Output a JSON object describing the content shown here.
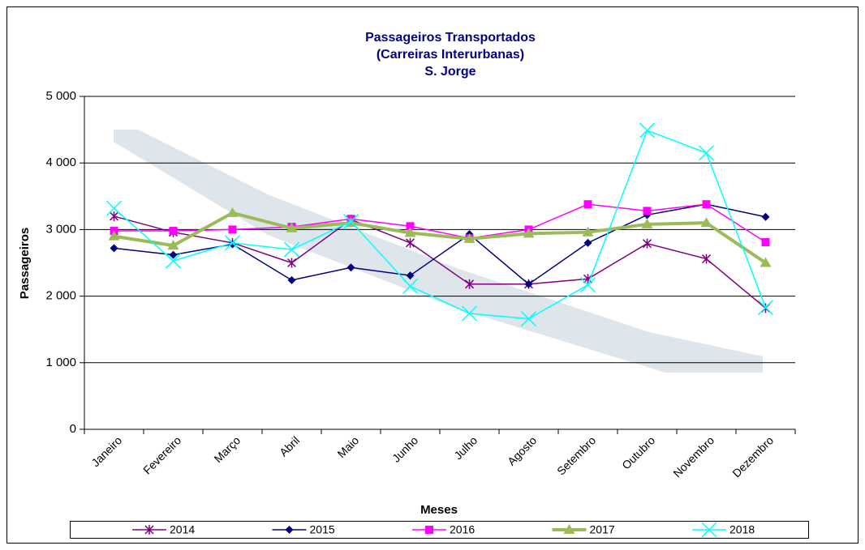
{
  "chart_data": {
    "type": "line",
    "title_lines": [
      "Passageiros Transportados",
      "(Carreiras Interurbanas)",
      "S. Jorge"
    ],
    "x_label": "Meses",
    "y_label": "Passageiros",
    "categories": [
      "Janeiro",
      "Fevereiro",
      "Março",
      "Abril",
      "Maio",
      "Junho",
      "Julho",
      "Agosto",
      "Setembro",
      "Outubro",
      "Novembro",
      "Dezembro"
    ],
    "series": [
      {
        "name": "2014",
        "color": "#800080",
        "marker": "star",
        "width": 1.5,
        "values": [
          3200,
          2960,
          2800,
          2500,
          3150,
          2800,
          2180,
          2180,
          2260,
          2790,
          2560,
          1820
        ]
      },
      {
        "name": "2015",
        "color": "#000080",
        "marker": "diamond",
        "width": 1.5,
        "values": [
          2720,
          2620,
          2780,
          2240,
          2430,
          2310,
          2930,
          2180,
          2800,
          3220,
          3380,
          3190
        ]
      },
      {
        "name": "2016",
        "color": "#ff00ff",
        "marker": "square",
        "width": 1.5,
        "values": [
          2980,
          2980,
          3000,
          3040,
          3160,
          3050,
          2870,
          3000,
          3380,
          3280,
          3380,
          2810
        ]
      },
      {
        "name": "2017",
        "color": "#9bbb59",
        "marker": "triangle",
        "width": 4,
        "values": [
          2900,
          2760,
          3250,
          3020,
          3100,
          2950,
          2860,
          2940,
          2960,
          3080,
          3100,
          2500
        ]
      },
      {
        "name": "2018",
        "color": "#00ffff",
        "marker": "x",
        "width": 1.5,
        "values": [
          3320,
          2530,
          2800,
          2700,
          3120,
          2150,
          1740,
          1660,
          2170,
          4490,
          4150,
          1830
        ]
      }
    ],
    "ylim": [
      0,
      5000
    ],
    "yticks": [
      0,
      {
        "value": 1000,
        "label": "1 000"
      },
      {
        "value": 2000,
        "label": "2 000"
      },
      {
        "value": 3000,
        "label": "3 000"
      },
      {
        "value": 4000,
        "label": "4 000"
      },
      {
        "value": 5000,
        "label": "5 000"
      }
    ],
    "grid": true
  }
}
